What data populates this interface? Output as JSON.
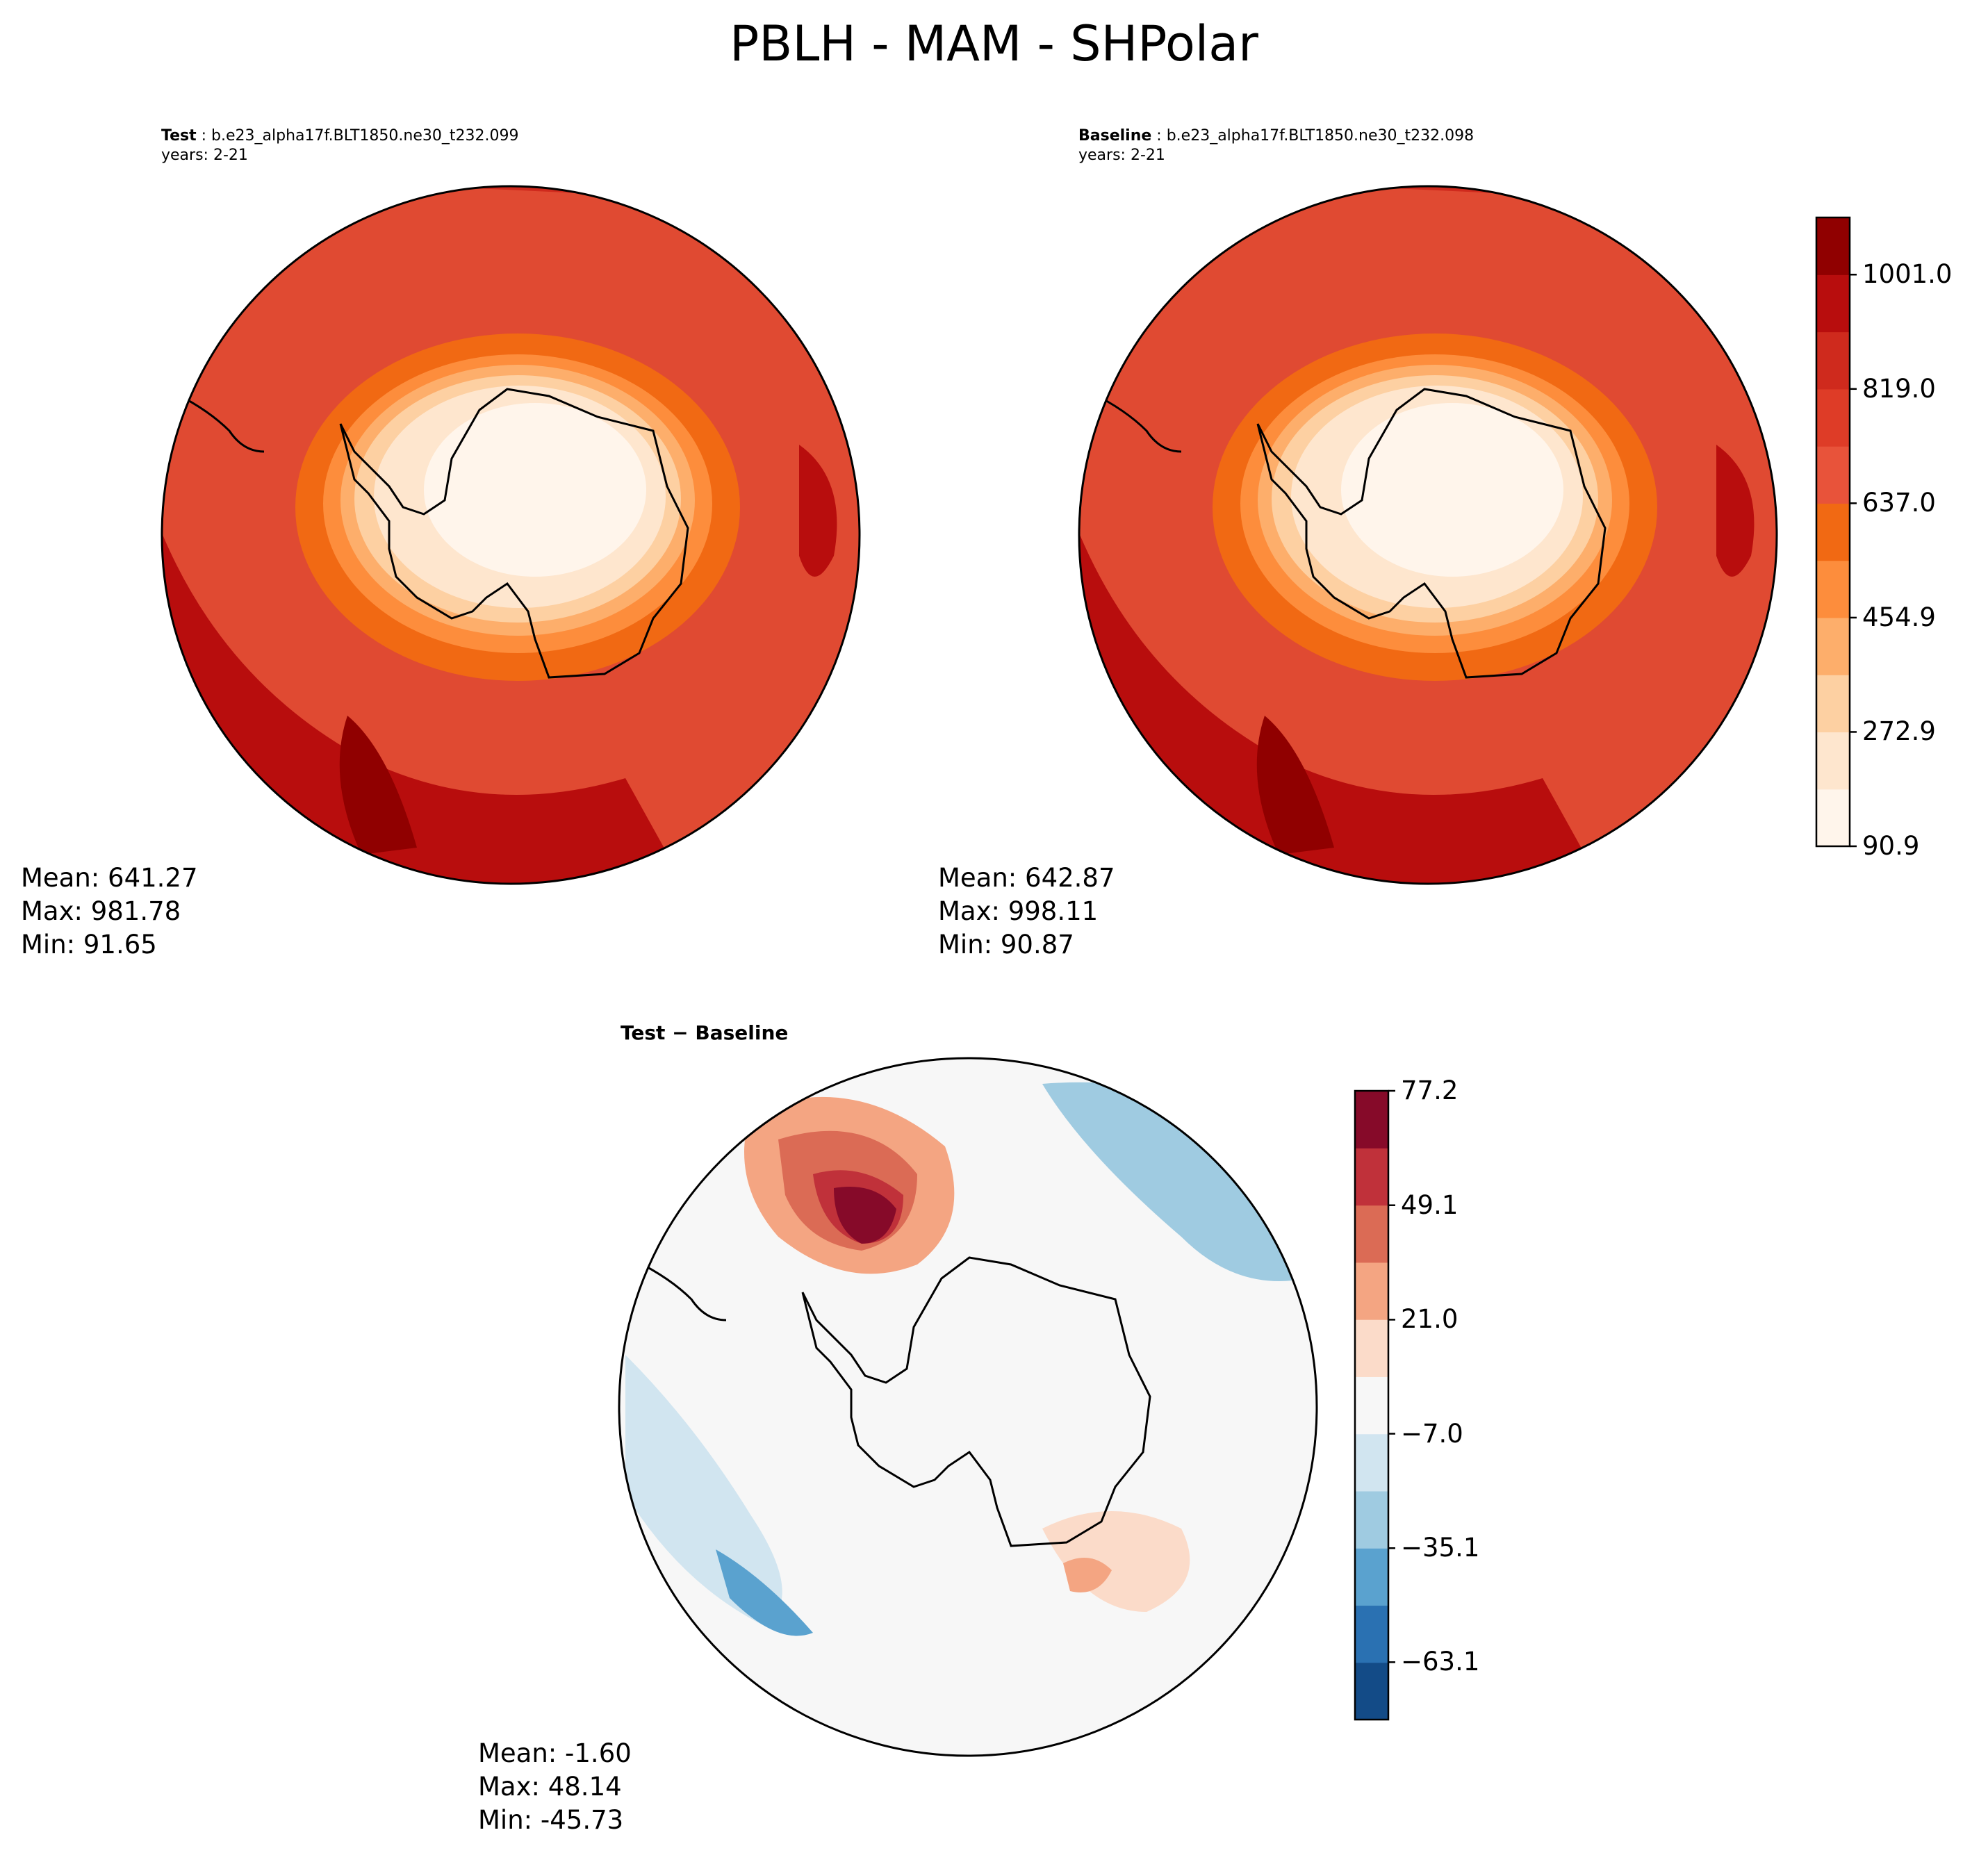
{
  "chart_data": [
    {
      "type": "heatmap",
      "projection": "south-polar-stereographic",
      "title_label": "Test",
      "case_name": "b.e23_alpha17f.BLT1850.ne30_t232.099",
      "years": "years: 2-21",
      "stats": {
        "mean": "Mean: 641.27",
        "max": "Max: 981.78",
        "min": "Min: 91.65"
      },
      "levels": [
        90.9,
        181.9,
        272.9,
        363.9,
        454.9,
        545.9,
        637.0,
        728.0,
        819.0,
        910.0,
        1001.0,
        1092.0
      ]
    },
    {
      "type": "heatmap",
      "projection": "south-polar-stereographic",
      "title_label": "Baseline",
      "case_name": "b.e23_alpha17f.BLT1850.ne30_t232.098",
      "years": "years: 2-21",
      "stats": {
        "mean": "Mean: 642.87",
        "max": "Max: 998.11",
        "min": "Min: 90.87"
      },
      "levels": [
        90.9,
        181.9,
        272.9,
        363.9,
        454.9,
        545.9,
        637.0,
        728.0,
        819.0,
        910.0,
        1001.0,
        1092.0
      ]
    },
    {
      "type": "heatmap",
      "projection": "south-polar-stereographic",
      "title_label": "Test − Baseline",
      "stats": {
        "mean": "Mean: -1.60",
        "max": "Max: 48.14",
        "min": "Min: -45.73"
      },
      "levels": [
        -77.2,
        -63.1,
        -49.1,
        -35.1,
        -21.0,
        -7.0,
        7.0,
        21.0,
        35.1,
        49.1,
        63.1,
        77.2
      ]
    }
  ],
  "suptitle": "PBLH - MAM - SHPolar",
  "colorbar_main": {
    "range": [
      90.9,
      1092.0
    ],
    "tick_values": [
      90.9,
      272.9,
      454.9,
      637.0,
      819.0,
      1001.0
    ],
    "ticks": [
      "90.9",
      "272.9",
      "454.9",
      "637.0",
      "819.0",
      "1001.0"
    ],
    "colors": [
      "#fff5eb",
      "#fee6ce",
      "#fdd0a2",
      "#fdae6b",
      "#fd8d3c",
      "#f16913",
      "#e8533a",
      "#de3c27",
      "#cf2a1d",
      "#b80d0d",
      "#900000"
    ]
  },
  "colorbar_diff": {
    "range": [
      -77.2,
      77.2
    ],
    "tick_values": [
      -63.1,
      -35.1,
      -7.0,
      21.0,
      49.1,
      77.2
    ],
    "ticks": [
      "−63.1",
      "−35.1",
      "−7.0",
      "21.0",
      "49.1",
      "77.2"
    ],
    "colors": [
      "#134b87",
      "#2a71b2",
      "#5aa2cf",
      "#9fcbe1",
      "#d1e5f0",
      "#f7f7f7",
      "#fbdbc9",
      "#f4a582",
      "#db6b55",
      "#c0313a",
      "#860a29"
    ]
  }
}
